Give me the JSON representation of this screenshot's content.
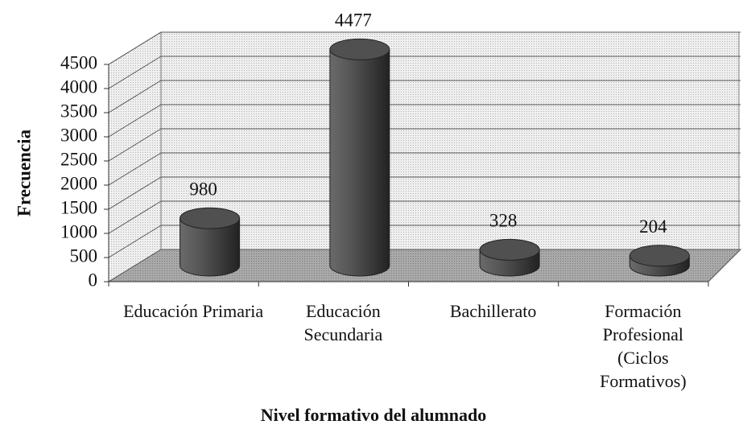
{
  "chart_data": {
    "type": "bar",
    "style": "3d-cylinder",
    "x_label": "Nivel formativo del alumnado",
    "y_label": "Frecuencia",
    "categories": [
      "Educación Primaria",
      "Educación Secundaria",
      "Bachillerato",
      "Formación Profesional (Ciclos Formativos)"
    ],
    "values": [
      980,
      4477,
      328,
      204
    ],
    "color": "#505050",
    "ylim": [
      0,
      4500
    ],
    "yticks": [
      0,
      500,
      1000,
      1500,
      2000,
      2500,
      3000,
      3500,
      4000,
      4500
    ],
    "grid": true
  }
}
